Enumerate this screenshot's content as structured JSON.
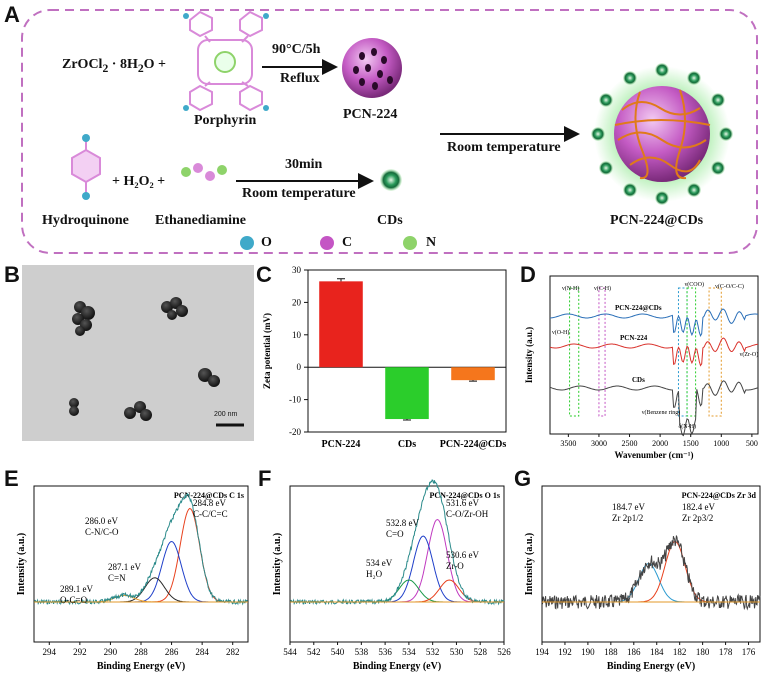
{
  "panel_labels": {
    "A": "A",
    "B": "B",
    "C": "C",
    "D": "D",
    "E": "E",
    "F": "F",
    "G": "G"
  },
  "schematic": {
    "reagent1": "ZrOCl",
    "reagent1_sub1": "2",
    "reagent1_rest": " · 8H",
    "reagent1_sub2": "2",
    "reagent1_tail": "O +",
    "porphyrin": "Porphyrin",
    "cond1_top": "90°C/5h",
    "cond1_bottom": "Reflux",
    "pcn224": "PCN-224",
    "hydroquinone": "Hydroquinone",
    "h2o2": "+ H₂O₂ +",
    "ethanediamine": "Ethanediamine",
    "cond2_top": "30min",
    "cond2_bottom": "Room temperature",
    "cds": "CDs",
    "cond3": "Room temperature",
    "product": "PCN-224@CDs",
    "legend": [
      {
        "label": "O",
        "color": "#3fa9c9"
      },
      {
        "label": "C",
        "color": "#c455c4"
      },
      {
        "label": "N",
        "color": "#8ed36a"
      }
    ]
  },
  "tem": {
    "scale_label": "200 nm"
  },
  "chart_data": [
    {
      "panel": "C",
      "type": "bar",
      "categories": [
        "PCN-224",
        "CDs",
        "PCN-224@CDs"
      ],
      "values": [
        26.5,
        -16,
        -4
      ],
      "errors": [
        0.8,
        0.3,
        0.3
      ],
      "colors": [
        "#e8231d",
        "#2bcd2b",
        "#f5761c"
      ],
      "ylabel": "Zeta potential (mV)",
      "ylim": [
        -20,
        30
      ],
      "yticks": [
        -20,
        -10,
        0,
        10,
        20,
        30
      ]
    },
    {
      "panel": "D",
      "type": "line",
      "xlabel": "Wavenumber (cm⁻¹)",
      "ylabel": "Intensity (a.u.)",
      "xlim": [
        3800,
        400
      ],
      "xticks": [
        3500,
        3000,
        2500,
        2000,
        1500,
        1000,
        500
      ],
      "series": [
        {
          "name": "PCN-224@CDs",
          "color": "#2a6fb8"
        },
        {
          "name": "PCN-224",
          "color": "#d9322c"
        },
        {
          "name": "CDs",
          "color": "#444444"
        }
      ],
      "annotations": [
        "ν(N-H)",
        "ν(C-H)",
        "ν(COO)",
        "ν(C-O/C-C)",
        "ν(O-H)",
        "ν(Zr-O)",
        "ν(Benzene ring)",
        "δ(N-H)"
      ]
    },
    {
      "panel": "E",
      "type": "line",
      "title": "PCN-224@CDs C 1s",
      "xlabel": "Binding Energy (eV)",
      "ylabel": "Intensity (a.u.)",
      "xlim": [
        295,
        281
      ],
      "xticks": [
        294,
        292,
        290,
        288,
        286,
        284,
        282
      ],
      "peaks": [
        {
          "label": "284.8 eV",
          "assign": "C-C/C=C",
          "center": 284.8,
          "height": 0.85,
          "color": "#e8411d"
        },
        {
          "label": "286.0 eV",
          "assign": "C-N/C-O",
          "center": 286.0,
          "height": 0.55,
          "color": "#1f3fc9"
        },
        {
          "label": "287.1 eV",
          "assign": "C=N",
          "center": 287.1,
          "height": 0.22,
          "color": "#2a2a2a"
        },
        {
          "label": "289.1 eV",
          "assign": "O-C=O",
          "center": 289.1,
          "height": 0.06,
          "color": "#e39a2a"
        }
      ]
    },
    {
      "panel": "F",
      "type": "line",
      "title": "PCN-224@CDs O 1s",
      "xlabel": "Binding Energy (eV)",
      "ylabel": "Intensity (a.u.)",
      "xlim": [
        544,
        526
      ],
      "xticks": [
        544,
        542,
        540,
        538,
        536,
        534,
        532,
        530,
        528,
        526
      ],
      "peaks": [
        {
          "label": "531.6 eV",
          "assign": "C-O/Zr-OH",
          "center": 531.6,
          "height": 0.75,
          "color": "#c03ac0"
        },
        {
          "label": "532.8 eV",
          "assign": "C=O",
          "center": 532.8,
          "height": 0.6,
          "color": "#1f3fc9"
        },
        {
          "label": "534 eV",
          "assign": "H₂O",
          "center": 534.0,
          "height": 0.2,
          "color": "#1c9a4a"
        },
        {
          "label": "530.6 eV",
          "assign": "Zr-O",
          "center": 530.6,
          "height": 0.2,
          "color": "#e8411d"
        }
      ]
    },
    {
      "panel": "G",
      "type": "line",
      "title": "PCN-224@CDs Zr 3d",
      "xlabel": "Binding Energy (eV)",
      "ylabel": "Intensity (a.u.)",
      "xlim": [
        194,
        175
      ],
      "xticks": [
        194,
        192,
        190,
        188,
        186,
        184,
        182,
        180,
        178,
        176
      ],
      "peaks": [
        {
          "label": "184.7 eV",
          "assign": "Zr 2p1/2",
          "center": 184.7,
          "height": 0.35,
          "color": "#2a9ad0"
        },
        {
          "label": "182.4 eV",
          "assign": "Zr 2p3/2",
          "center": 182.4,
          "height": 0.55,
          "color": "#e8411d"
        }
      ]
    }
  ]
}
